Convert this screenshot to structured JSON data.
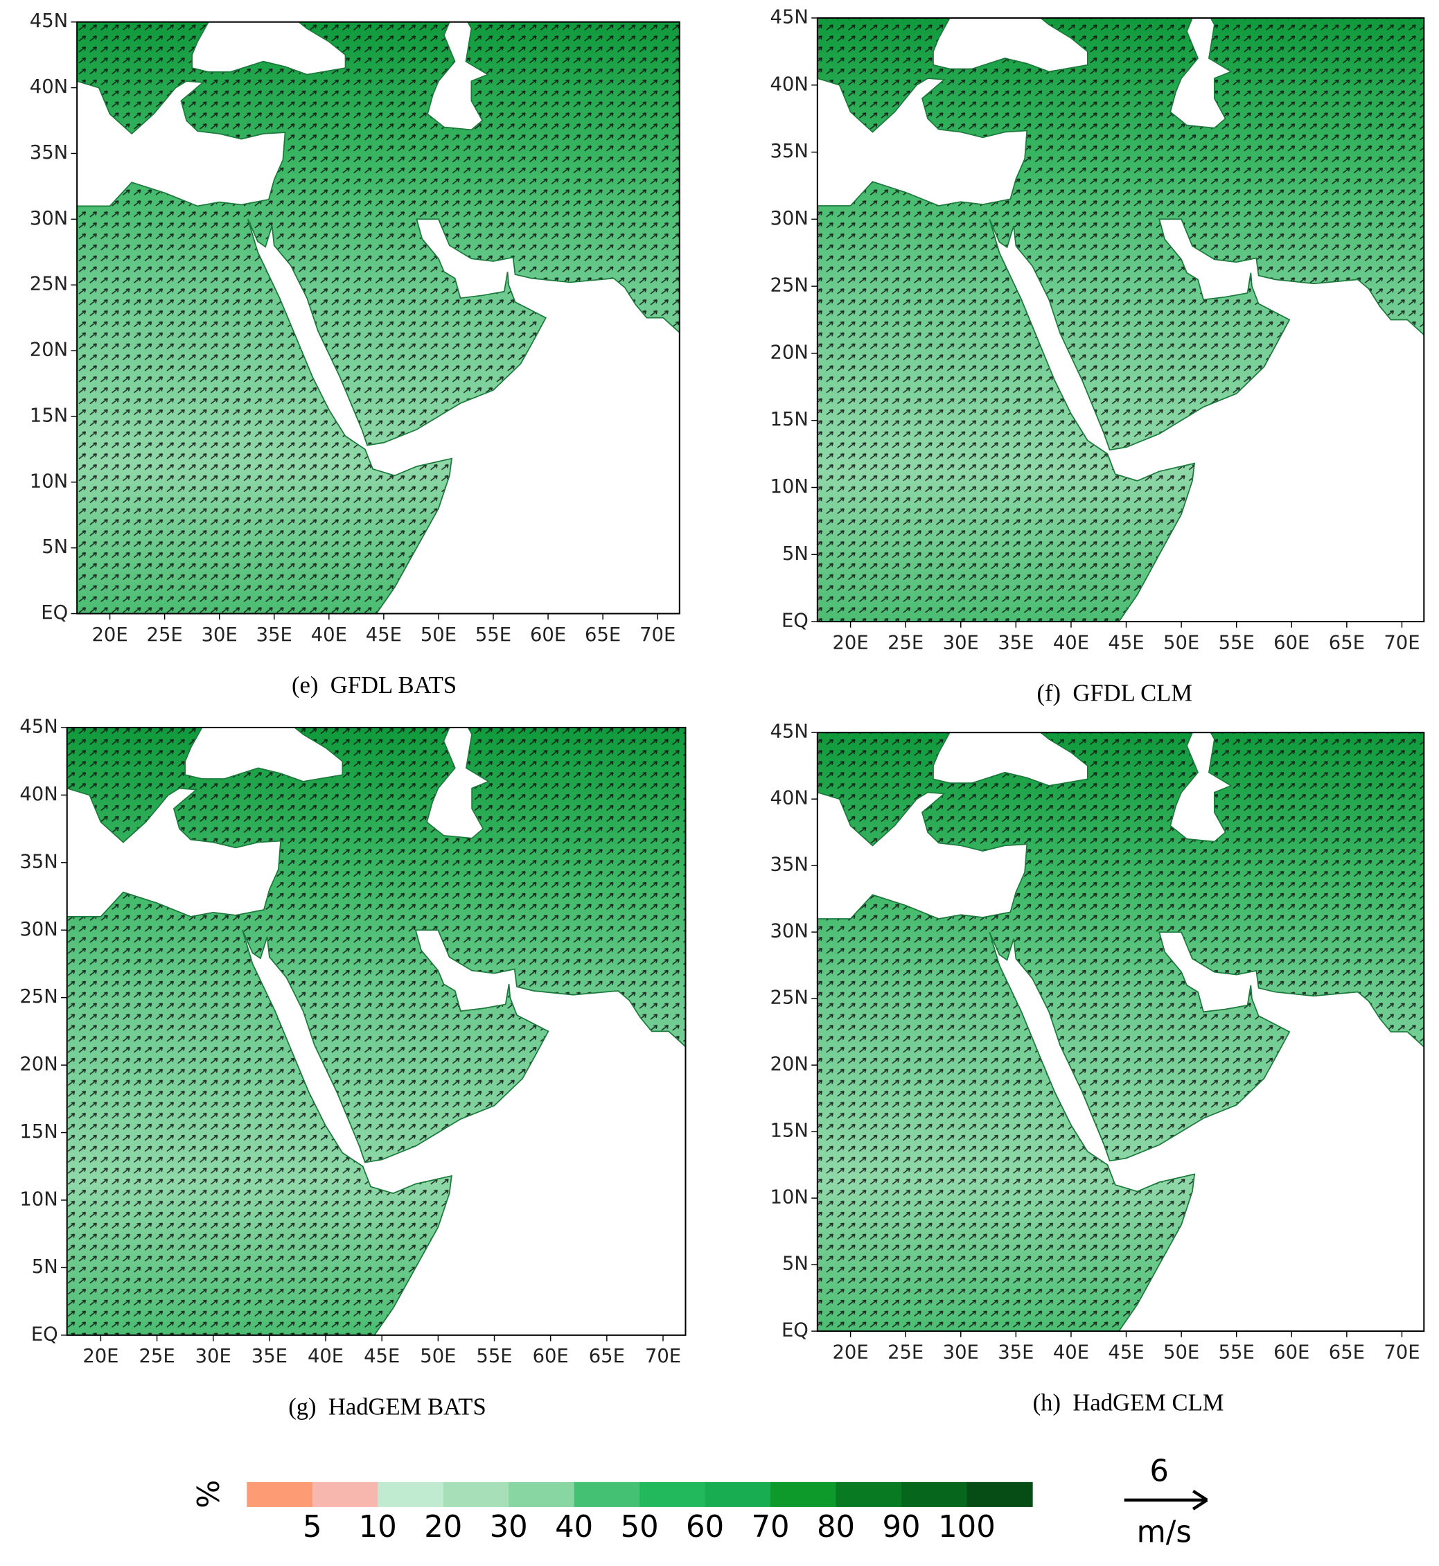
{
  "panels": [
    {
      "label": "(e)",
      "title": "GFDL BATS"
    },
    {
      "label": "(f)",
      "title": "GFDL CLM"
    },
    {
      "label": "(g)",
      "title": "HadGEM BATS"
    },
    {
      "label": "(h)",
      "title": "HadGEM CLM"
    }
  ],
  "map": {
    "latlim": [
      0,
      45
    ],
    "lonlim": [
      17,
      72
    ],
    "lat_ticks": [
      {
        "value": 0,
        "label": "EQ"
      },
      {
        "value": 5,
        "label": "5N"
      },
      {
        "value": 10,
        "label": "10N"
      },
      {
        "value": 15,
        "label": "15N"
      },
      {
        "value": 20,
        "label": "20N"
      },
      {
        "value": 25,
        "label": "25N"
      },
      {
        "value": 30,
        "label": "30N"
      },
      {
        "value": 35,
        "label": "35N"
      },
      {
        "value": 40,
        "label": "40N"
      },
      {
        "value": 45,
        "label": "45N"
      }
    ],
    "lon_ticks": [
      {
        "value": 20,
        "label": "20E"
      },
      {
        "value": 25,
        "label": "25E"
      },
      {
        "value": 30,
        "label": "30E"
      },
      {
        "value": 35,
        "label": "35E"
      },
      {
        "value": 40,
        "label": "40E"
      },
      {
        "value": 45,
        "label": "45E"
      },
      {
        "value": 50,
        "label": "50E"
      },
      {
        "value": 55,
        "label": "55E"
      },
      {
        "value": 60,
        "label": "60E"
      },
      {
        "value": 65,
        "label": "65E"
      },
      {
        "value": 70,
        "label": "70E"
      }
    ]
  },
  "colorbar": {
    "unit": "%",
    "colors": [
      "#fc9b74",
      "#f7b7ae",
      "#c0ebd0",
      "#a6dfb8",
      "#88d6a2",
      "#45c173",
      "#22b85c",
      "#18ad50",
      "#0e9a2a",
      "#087a22",
      "#06661c",
      "#054d14"
    ],
    "ticks": [
      5,
      10,
      20,
      30,
      40,
      50,
      60,
      70,
      80,
      90,
      100
    ]
  },
  "vector_legend": {
    "magnitude": 6,
    "unit": "m/s"
  }
}
